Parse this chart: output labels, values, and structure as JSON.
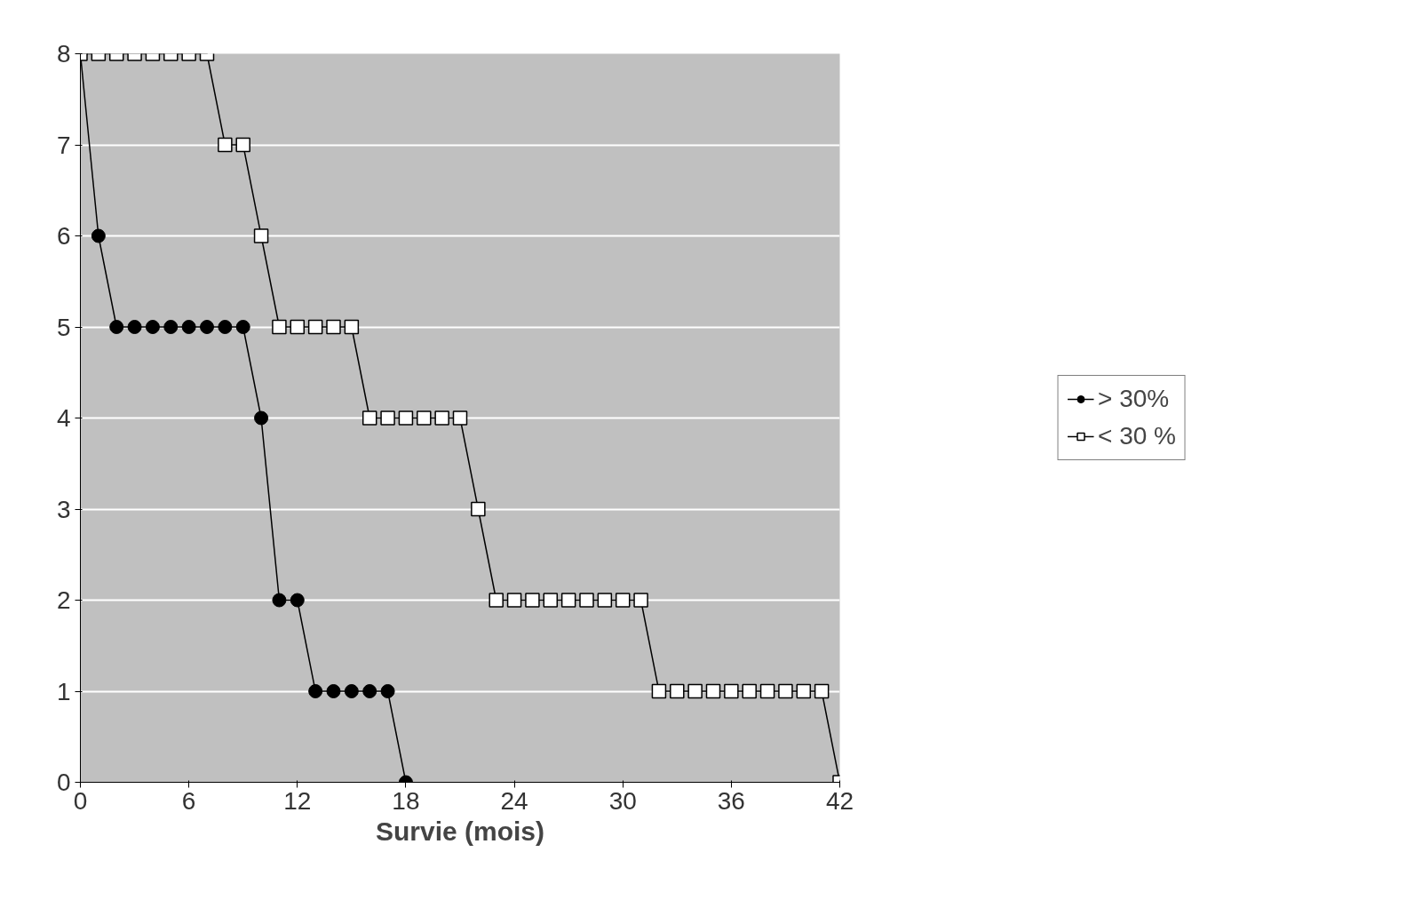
{
  "chart_data": {
    "type": "line",
    "xlabel": "Survie (mois)",
    "xlim": [
      0,
      42
    ],
    "ylim": [
      0,
      8
    ],
    "xticks": [
      0,
      6,
      12,
      18,
      24,
      30,
      36,
      42
    ],
    "yticks": [
      0,
      1,
      2,
      3,
      4,
      5,
      6,
      7,
      8
    ],
    "grid": "y",
    "legend": "right",
    "line_style": "solid",
    "series": [
      {
        "name": "> 30%",
        "color": "#000000",
        "marker": "circle",
        "x": [
          0,
          1,
          2,
          3,
          4,
          5,
          6,
          7,
          8,
          9,
          10,
          11,
          12,
          13,
          14,
          15,
          16,
          17,
          18
        ],
        "values": [
          8,
          6,
          5,
          5,
          5,
          5,
          5,
          5,
          5,
          5,
          4,
          2,
          2,
          1,
          1,
          1,
          1,
          1,
          0
        ]
      },
      {
        "name": "< 30 %",
        "color": "#000000",
        "marker": "square",
        "x": [
          0,
          1,
          2,
          3,
          4,
          5,
          6,
          7,
          8,
          9,
          10,
          11,
          12,
          13,
          14,
          15,
          16,
          17,
          18,
          19,
          20,
          21,
          22,
          23,
          24,
          25,
          26,
          27,
          28,
          29,
          30,
          31,
          32,
          33,
          34,
          35,
          36,
          37,
          38,
          39,
          40,
          41,
          42
        ],
        "values": [
          8,
          8,
          8,
          8,
          8,
          8,
          8,
          8,
          7,
          7,
          6,
          5,
          5,
          5,
          5,
          5,
          4,
          4,
          4,
          4,
          4,
          4,
          3,
          2,
          2,
          2,
          2,
          2,
          2,
          2,
          2,
          2,
          1,
          1,
          1,
          1,
          1,
          1,
          1,
          1,
          1,
          1,
          0
        ]
      }
    ]
  }
}
